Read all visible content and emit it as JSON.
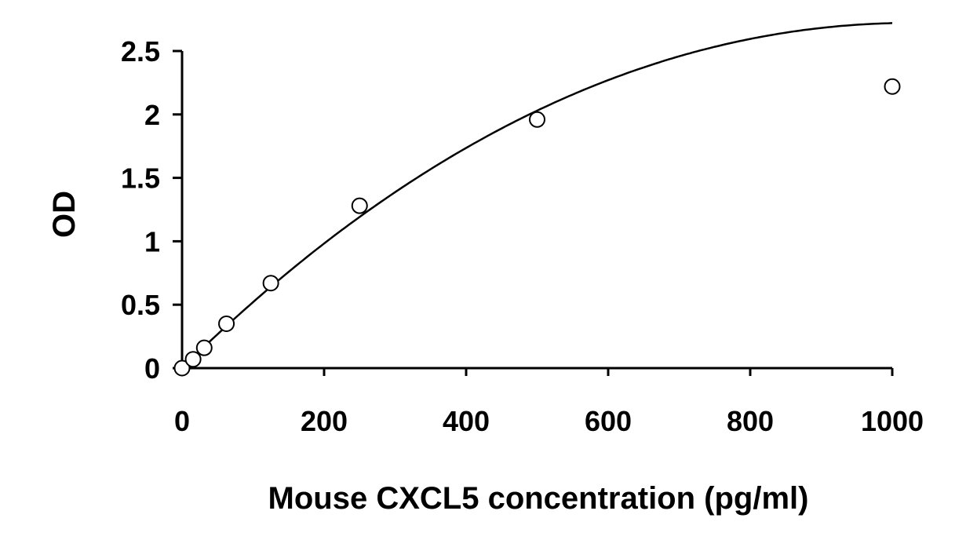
{
  "chart_data": {
    "type": "scatter",
    "title": "",
    "xlabel": "Mouse CXCL5 concentration (pg/ml)",
    "ylabel": "OD",
    "xlim": [
      0,
      1000
    ],
    "ylim": [
      0,
      2.5
    ],
    "x_ticks": [
      "0",
      "200",
      "400",
      "600",
      "800",
      "1000"
    ],
    "y_ticks": [
      "0",
      "0.5",
      "1",
      "1.5",
      "2",
      "2.5"
    ],
    "grid": false,
    "legend": "none",
    "series": [
      {
        "points": [
          {
            "x": 0,
            "y": 0.0
          },
          {
            "x": 15.6,
            "y": 0.07
          },
          {
            "x": 31.25,
            "y": 0.16
          },
          {
            "x": 62.5,
            "y": 0.35
          },
          {
            "x": 125,
            "y": 0.67
          },
          {
            "x": 250,
            "y": 1.28
          },
          {
            "x": 500,
            "y": 1.96
          },
          {
            "x": 1000,
            "y": 2.22
          }
        ],
        "marker": "open-circle",
        "color": "#000000"
      }
    ],
    "fit_curve": {
      "type": "polynomial",
      "coefficients": [
        0.0,
        0.0055,
        -2.98e-06,
        2e-10
      ]
    }
  }
}
